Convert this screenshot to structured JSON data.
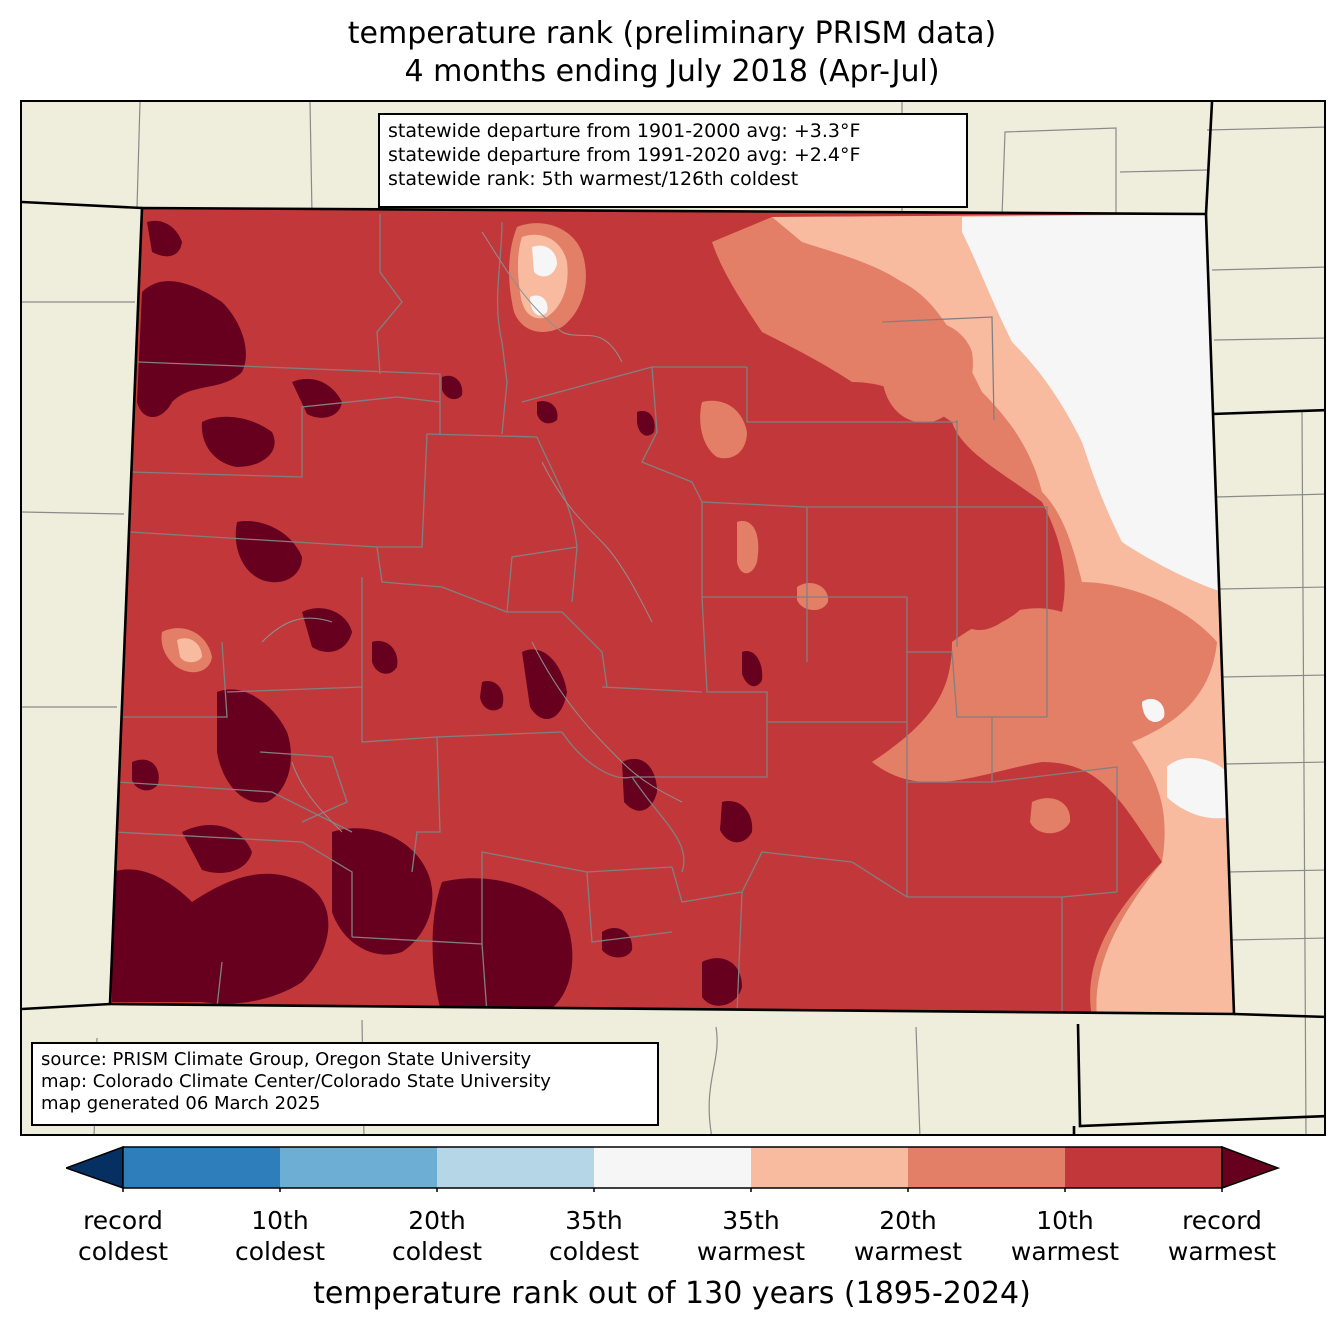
{
  "title": {
    "line1": "temperature rank (preliminary PRISM data)",
    "line2": "4 months ending July 2018 (Apr-Jul)"
  },
  "stats": {
    "line1": "statewide departure from 1901-2000 avg: +3.3°F",
    "line2": "statewide departure from 1991-2020 avg: +2.4°F",
    "line3": "statewide rank: 5th warmest/126th coldest"
  },
  "source": {
    "line1": "source: PRISM Climate Group, Oregon State University",
    "line2": "map: Colorado Climate Center/Colorado State University",
    "line3": "map generated 06 March 2025"
  },
  "colorbar": {
    "title": "temperature rank out of 130 years (1895-2024)",
    "under_color": "#053061",
    "over_color": "#67001f",
    "bins": [
      {
        "color": "#2f7ebc"
      },
      {
        "color": "#6caed4"
      },
      {
        "color": "#b4d6e7"
      },
      {
        "color": "#f6f6f6"
      },
      {
        "color": "#f8bba0"
      },
      {
        "color": "#e27f66"
      },
      {
        "color": "#c2383a"
      }
    ],
    "ticks": [
      {
        "line1": "record",
        "line2": "coldest"
      },
      {
        "line1": "10th",
        "line2": "coldest"
      },
      {
        "line1": "20th",
        "line2": "coldest"
      },
      {
        "line1": "35th",
        "line2": "coldest"
      },
      {
        "line1": "35th",
        "line2": "warmest"
      },
      {
        "line1": "20th",
        "line2": "warmest"
      },
      {
        "line1": "10th",
        "line2": "warmest"
      },
      {
        "line1": "record",
        "line2": "warmest"
      }
    ]
  },
  "map_colors": {
    "land": "#efeedc",
    "record_warmest": "#67001f",
    "top10_warmest": "#c2383a",
    "top20_warmest": "#e27f66",
    "top35_warmest": "#f8bba0",
    "near_normal": "#f6f6f6",
    "county_lines": "#808080",
    "state_lines": "#000000"
  }
}
